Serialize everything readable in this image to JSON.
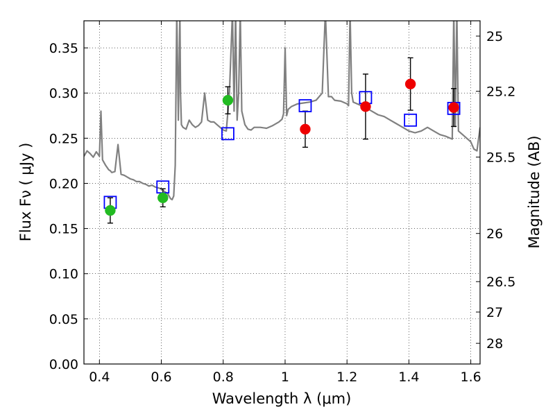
{
  "chart_data": {
    "type": "scatter",
    "xlabel": "Wavelength  λ (μm)",
    "ylabel": "Flux  Fν  ( μJy )",
    "y2label": "Magnitude (AB)",
    "xlim": [
      0.35,
      1.63
    ],
    "ylim": [
      0.0,
      0.38
    ],
    "grid": true,
    "x_ticks": [
      0.4,
      0.6,
      0.8,
      1.0,
      1.2,
      1.4,
      1.6
    ],
    "x_tick_labels": [
      "0.4",
      "0.6",
      "0.8",
      "1",
      "1.2",
      "1.4",
      "1.6"
    ],
    "y_ticks": [
      0.0,
      0.05,
      0.1,
      0.15,
      0.2,
      0.25,
      0.3,
      0.35
    ],
    "y_tick_labels": [
      "0.00",
      "0.05",
      "0.10",
      "0.15",
      "0.20",
      "0.25",
      "0.30",
      "0.35"
    ],
    "y2_ticks": [
      {
        "mag": 25,
        "label": "25"
      },
      {
        "mag": 25.2,
        "label": "25.2"
      },
      {
        "mag": 25.5,
        "label": "25.5"
      },
      {
        "mag": 26,
        "label": "26"
      },
      {
        "mag": 26.5,
        "label": "26.5"
      },
      {
        "mag": 27,
        "label": "27"
      },
      {
        "mag": 28,
        "label": "28"
      }
    ],
    "series": [
      {
        "kind": "line",
        "color": "#808080",
        "x": [
          0.35,
          0.36,
          0.37,
          0.38,
          0.39,
          0.4,
          0.405,
          0.41,
          0.42,
          0.43,
          0.435,
          0.44,
          0.45,
          0.46,
          0.47,
          0.48,
          0.485,
          0.49,
          0.5,
          0.51,
          0.52,
          0.53,
          0.54,
          0.55,
          0.56,
          0.57,
          0.58,
          0.59,
          0.6,
          0.61,
          0.62,
          0.63,
          0.635,
          0.64,
          0.645,
          0.65,
          0.655,
          0.66,
          0.662,
          0.665,
          0.67,
          0.68,
          0.69,
          0.7,
          0.71,
          0.72,
          0.73,
          0.74,
          0.75,
          0.76,
          0.77,
          0.78,
          0.79,
          0.8,
          0.81,
          0.82,
          0.83,
          0.835,
          0.84,
          0.845,
          0.85,
          0.855,
          0.86,
          0.87,
          0.88,
          0.89,
          0.9,
          0.92,
          0.94,
          0.96,
          0.98,
          0.99,
          0.995,
          1.0,
          1.005,
          1.01,
          1.02,
          1.04,
          1.06,
          1.08,
          1.1,
          1.12,
          1.13,
          1.14,
          1.15,
          1.16,
          1.18,
          1.2,
          1.205,
          1.21,
          1.215,
          1.22,
          1.24,
          1.26,
          1.28,
          1.3,
          1.32,
          1.34,
          1.36,
          1.38,
          1.4,
          1.42,
          1.44,
          1.46,
          1.48,
          1.5,
          1.52,
          1.54,
          1.545,
          1.55,
          1.555,
          1.56,
          1.58,
          1.6,
          1.61,
          1.62,
          1.63
        ],
        "y": [
          0.23,
          0.236,
          0.233,
          0.229,
          0.235,
          0.23,
          0.28,
          0.226,
          0.22,
          0.215,
          0.214,
          0.212,
          0.213,
          0.243,
          0.21,
          0.209,
          0.208,
          0.207,
          0.205,
          0.204,
          0.202,
          0.202,
          0.2,
          0.199,
          0.197,
          0.198,
          0.196,
          0.195,
          0.194,
          0.191,
          0.189,
          0.183,
          0.182,
          0.186,
          0.22,
          0.39,
          0.27,
          0.39,
          0.3,
          0.265,
          0.262,
          0.26,
          0.27,
          0.265,
          0.262,
          0.264,
          0.268,
          0.3,
          0.27,
          0.268,
          0.268,
          0.265,
          0.262,
          0.259,
          0.258,
          0.3,
          0.39,
          0.28,
          0.39,
          0.27,
          0.3,
          0.39,
          0.28,
          0.265,
          0.26,
          0.259,
          0.262,
          0.262,
          0.261,
          0.264,
          0.268,
          0.271,
          0.277,
          0.35,
          0.275,
          0.282,
          0.285,
          0.288,
          0.289,
          0.29,
          0.292,
          0.3,
          0.39,
          0.296,
          0.296,
          0.292,
          0.291,
          0.288,
          0.286,
          0.39,
          0.3,
          0.29,
          0.287,
          0.284,
          0.28,
          0.276,
          0.274,
          0.27,
          0.266,
          0.262,
          0.258,
          0.256,
          0.258,
          0.262,
          0.258,
          0.254,
          0.252,
          0.249,
          0.39,
          0.263,
          0.39,
          0.258,
          0.252,
          0.246,
          0.238,
          0.236,
          0.262
        ]
      },
      {
        "kind": "marker",
        "marker": "open-square",
        "color": "#0000ff",
        "x": [
          0.435,
          0.605,
          0.815,
          1.065,
          1.26,
          1.405,
          1.545
        ],
        "y": [
          0.179,
          0.196,
          0.255,
          0.286,
          0.295,
          0.27,
          0.283
        ]
      },
      {
        "kind": "marker",
        "marker": "filled-circle",
        "color": "#22bb22",
        "x": [
          0.435,
          0.605,
          0.815
        ],
        "y": [
          0.17,
          0.184,
          0.292
        ],
        "yerr": [
          0.014,
          0.01,
          0.015
        ]
      },
      {
        "kind": "marker",
        "marker": "filled-circle",
        "color": "#ee0000",
        "x": [
          1.065,
          1.26,
          1.405,
          1.545
        ],
        "y": [
          0.26,
          0.285,
          0.31,
          0.284
        ],
        "yerr": [
          0.02,
          0.036,
          0.029,
          0.021
        ]
      }
    ]
  }
}
